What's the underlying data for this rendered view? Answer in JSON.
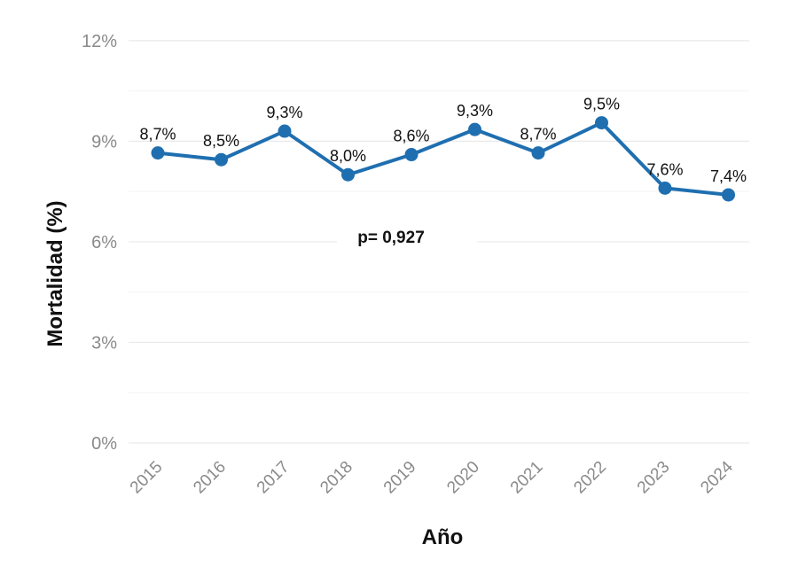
{
  "chart_data": {
    "type": "line",
    "title": "",
    "xlabel": "Año",
    "ylabel": "Mortalidad (%)",
    "ylim": [
      0,
      13
    ],
    "yticks": [
      0,
      3,
      6,
      9,
      12
    ],
    "ytick_labels": [
      "0%",
      "3%",
      "6%",
      "9%",
      "12%"
    ],
    "grid": true,
    "categories": [
      "2015",
      "2016",
      "2017",
      "2018",
      "2019",
      "2020",
      "2021",
      "2022",
      "2023",
      "2024"
    ],
    "series": [
      {
        "name": "Mortalidad",
        "color": "#1f6fb0",
        "values": [
          8.65,
          8.45,
          9.3,
          8.0,
          8.6,
          9.35,
          8.65,
          9.55,
          7.6,
          7.4
        ],
        "labels": [
          "8,7%",
          "8,5%",
          "9,3%",
          "8,0%",
          "8,6%",
          "9,3%",
          "8,7%",
          "9,5%",
          "7,6%",
          "7,4%"
        ]
      }
    ],
    "annotation": "p= 0,927"
  }
}
